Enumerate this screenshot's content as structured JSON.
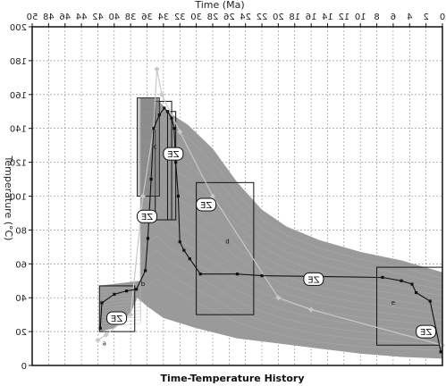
{
  "chart_data": {
    "type": "line",
    "title": "Time-Temperature History",
    "xlabel": "Time (Ma)",
    "ylabel": "Temperature (°C)",
    "x_reversed": true,
    "y_reversed": true,
    "xlim": [
      50,
      0
    ],
    "ylim": [
      200,
      0
    ],
    "x_ticks": [
      50,
      48,
      46,
      44,
      42,
      40,
      38,
      36,
      34,
      32,
      30,
      28,
      26,
      24,
      22,
      20,
      18,
      16,
      14,
      12,
      10,
      8,
      6,
      4,
      2,
      0
    ],
    "y_ticks": [
      200,
      180,
      160,
      140,
      120,
      100,
      80,
      60,
      40,
      20,
      0
    ],
    "grid": true,
    "colors": {
      "envelope": "#9a9a9a",
      "envelope_line": "#b4b4b4",
      "best_path": "#111111",
      "alt_path": "#c8c8c8",
      "box": "#111111",
      "grid": "#888888"
    },
    "envelope_upper": [
      {
        "x": 41.8,
        "y": 47
      },
      {
        "x": 36.8,
        "y": 50
      },
      {
        "x": 36.8,
        "y": 158
      },
      {
        "x": 34.8,
        "y": 158
      },
      {
        "x": 33.5,
        "y": 150
      },
      {
        "x": 31,
        "y": 142
      },
      {
        "x": 28,
        "y": 128
      },
      {
        "x": 25,
        "y": 108
      },
      {
        "x": 22,
        "y": 92
      },
      {
        "x": 19,
        "y": 82
      },
      {
        "x": 15,
        "y": 74
      },
      {
        "x": 10,
        "y": 67
      },
      {
        "x": 5,
        "y": 62
      },
      {
        "x": 0,
        "y": 55
      }
    ],
    "envelope_lower": [
      {
        "x": 0,
        "y": 4
      },
      {
        "x": 5,
        "y": 5
      },
      {
        "x": 10,
        "y": 7
      },
      {
        "x": 15,
        "y": 10
      },
      {
        "x": 20,
        "y": 13
      },
      {
        "x": 25,
        "y": 16
      },
      {
        "x": 30,
        "y": 22
      },
      {
        "x": 34,
        "y": 28
      },
      {
        "x": 36,
        "y": 35
      },
      {
        "x": 37.2,
        "y": 40
      },
      {
        "x": 38,
        "y": 31
      },
      {
        "x": 40,
        "y": 22
      },
      {
        "x": 41.8,
        "y": 20
      }
    ],
    "boxes": [
      {
        "x": [
          41.8,
          37.5
        ],
        "y": [
          20,
          47
        ]
      },
      {
        "x": [
          37.2,
          34.5
        ],
        "y": [
          100,
          158
        ]
      },
      {
        "x": [
          35,
          33
        ],
        "y": [
          86,
          156
        ]
      },
      {
        "x": [
          33.5,
          32.5
        ],
        "y": [
          86,
          150
        ]
      },
      {
        "x": [
          30,
          23
        ],
        "y": [
          30,
          108
        ]
      },
      {
        "x": [
          8,
          0
        ],
        "y": [
          12,
          58
        ]
      }
    ],
    "best_path": [
      {
        "x": 41.7,
        "y": 22
      },
      {
        "x": 41.5,
        "y": 37
      },
      {
        "x": 40,
        "y": 42
      },
      {
        "x": 38.5,
        "y": 44
      },
      {
        "x": 37.3,
        "y": 45
      },
      {
        "x": 36.2,
        "y": 56
      },
      {
        "x": 35.9,
        "y": 75
      },
      {
        "x": 35.5,
        "y": 110
      },
      {
        "x": 35.2,
        "y": 140
      },
      {
        "x": 34.5,
        "y": 148
      },
      {
        "x": 33.9,
        "y": 152
      },
      {
        "x": 33.5,
        "y": 150
      },
      {
        "x": 33.0,
        "y": 146
      },
      {
        "x": 32.7,
        "y": 140
      },
      {
        "x": 32.5,
        "y": 120
      },
      {
        "x": 32.2,
        "y": 100
      },
      {
        "x": 32.0,
        "y": 73
      },
      {
        "x": 31.5,
        "y": 68
      },
      {
        "x": 30.8,
        "y": 63
      },
      {
        "x": 29.5,
        "y": 54
      },
      {
        "x": 25,
        "y": 54
      },
      {
        "x": 22,
        "y": 53
      },
      {
        "x": 7.3,
        "y": 52
      },
      {
        "x": 5,
        "y": 50
      },
      {
        "x": 3.7,
        "y": 48
      },
      {
        "x": 3.2,
        "y": 43
      },
      {
        "x": 1.5,
        "y": 38
      },
      {
        "x": 0.2,
        "y": 8
      }
    ],
    "alt_path": [
      {
        "x": 42,
        "y": 15
      },
      {
        "x": 41,
        "y": 18
      },
      {
        "x": 38,
        "y": 30
      },
      {
        "x": 36.5,
        "y": 100
      },
      {
        "x": 35.2,
        "y": 140
      },
      {
        "x": 34.8,
        "y": 175
      },
      {
        "x": 34.2,
        "y": 160
      },
      {
        "x": 32.0,
        "y": 138
      },
      {
        "x": 28,
        "y": 100
      },
      {
        "x": 20,
        "y": 40
      },
      {
        "x": 16,
        "y": 33
      },
      {
        "x": 0,
        "y": 12
      }
    ],
    "ze_labels": [
      {
        "text": "ZE",
        "x": 39.7,
        "y": 28
      },
      {
        "text": "ZE",
        "x": 36.0,
        "y": 88
      },
      {
        "text": "ZE",
        "x": 32.8,
        "y": 125
      },
      {
        "x": 28.8,
        "y": 95,
        "text": "ZE"
      },
      {
        "x": 15.7,
        "y": 51,
        "text": "ZE"
      },
      {
        "x": 2.0,
        "y": 20,
        "text": "ZE"
      }
    ],
    "small_markers": [
      {
        "text": "a",
        "x": 41.2,
        "y": 12
      },
      {
        "text": "b",
        "x": 36.5,
        "y": 47
      },
      {
        "text": "c",
        "x": 35.0,
        "y": 128
      },
      {
        "text": "d",
        "x": 26.2,
        "y": 72
      },
      {
        "text": "e",
        "x": 6.0,
        "y": 36
      }
    ]
  }
}
